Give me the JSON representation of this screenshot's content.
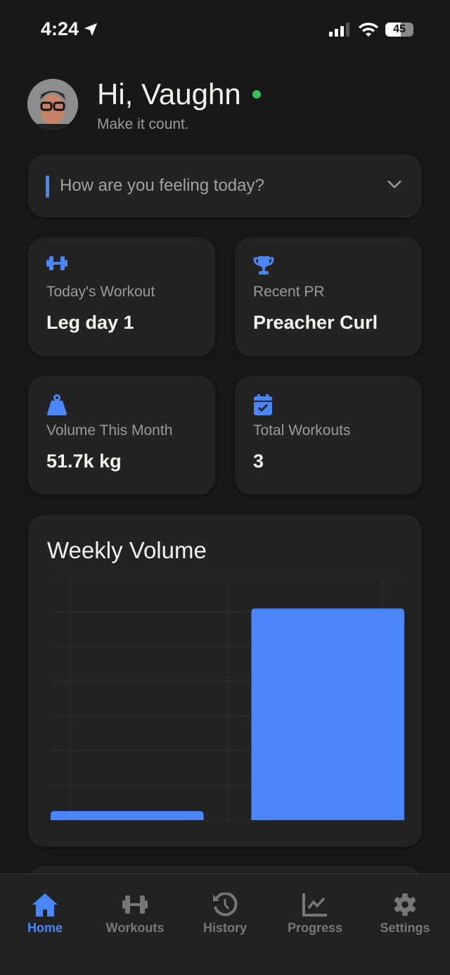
{
  "status_bar": {
    "time": "4:24",
    "battery": "45"
  },
  "header": {
    "greeting": "Hi, Vaughn",
    "subtitle": "Make it count.",
    "online_color": "#3cc25a"
  },
  "mood": {
    "placeholder": "How are you feeling today?"
  },
  "stats": [
    {
      "icon": "dumbbell-icon",
      "label": "Today's Workout",
      "value": "Leg day 1"
    },
    {
      "icon": "trophy-icon",
      "label": "Recent PR",
      "value": "Preacher Curl"
    },
    {
      "icon": "weight-icon",
      "label": "Volume This Month",
      "value": "51.7k kg"
    },
    {
      "icon": "calendar-check-icon",
      "label": "Total Workouts",
      "value": "3"
    }
  ],
  "chart_data": {
    "type": "bar",
    "title": "Weekly Volume",
    "categories": [
      "",
      ""
    ],
    "values": [
      0.26,
      6.1
    ],
    "ylim": [
      0,
      7
    ],
    "grid": true,
    "color": "#4a86f7"
  },
  "nav": [
    {
      "label": "Home",
      "icon": "home-icon",
      "active": true
    },
    {
      "label": "Workouts",
      "icon": "dumbbell-icon"
    },
    {
      "label": "History",
      "icon": "history-icon"
    },
    {
      "label": "Progress",
      "icon": "chart-line-icon"
    },
    {
      "label": "Settings",
      "icon": "gear-icon"
    }
  ],
  "colors": {
    "accent": "#4a86f7",
    "background": "#181818",
    "card": "#232323"
  }
}
